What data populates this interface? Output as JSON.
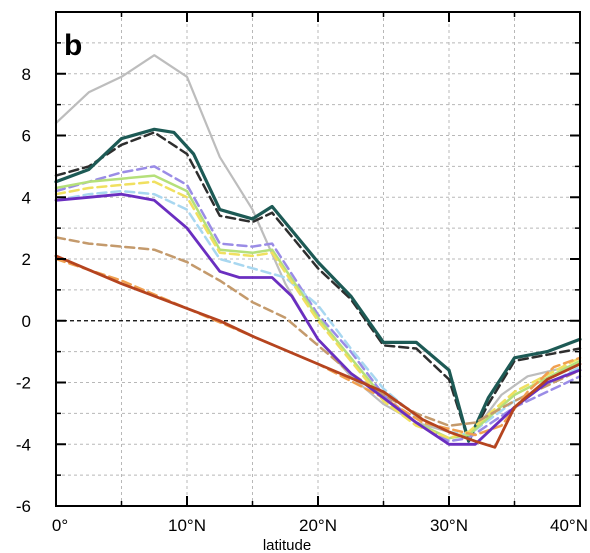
{
  "chart_data": {
    "type": "line",
    "panel_label": "b",
    "xlabel": "latitude",
    "ylabel": "",
    "xlim": [
      0,
      40
    ],
    "ylim": [
      -6,
      10
    ],
    "grid": true,
    "x_ticks": [
      0,
      10,
      20,
      30,
      40
    ],
    "x_tick_labels": [
      "0°",
      "10°N",
      "20°N",
      "30°N",
      "40°N"
    ],
    "y_ticks": [
      -6,
      -4,
      -2,
      0,
      2,
      4,
      6,
      8
    ],
    "y_tick_labels": [
      "-6",
      "-4",
      "-2",
      "0",
      "2",
      "4",
      "6",
      "8"
    ],
    "zero_line": true,
    "series": [
      {
        "color": "#bdbdbd",
        "dash": false,
        "width": 2.2,
        "x": [
          0,
          2.5,
          5,
          7.5,
          10,
          12.5,
          15,
          17.5,
          20,
          22.5,
          25,
          27.5,
          30,
          31.5,
          34,
          36,
          40
        ],
        "y": [
          6.4,
          7.4,
          7.9,
          8.6,
          7.9,
          5.3,
          3.6,
          1.2,
          -0.6,
          -1.8,
          -2.7,
          -3.3,
          -3.6,
          -3.8,
          -2.4,
          -1.8,
          -1.4
        ]
      },
      {
        "color": "#2e2e2e",
        "dash": true,
        "width": 2.5,
        "x": [
          0,
          2.5,
          5,
          7.5,
          10,
          12.5,
          15,
          16.5,
          20,
          22.5,
          25,
          27.5,
          30,
          31.5,
          33,
          35,
          37.5,
          40
        ],
        "y": [
          4.7,
          5.0,
          5.7,
          6.1,
          5.4,
          3.4,
          3.2,
          3.5,
          1.7,
          0.7,
          -0.8,
          -0.9,
          -1.9,
          -3.9,
          -2.7,
          -1.3,
          -1.1,
          -0.9
        ]
      },
      {
        "color": "#1d5a55",
        "dash": false,
        "width": 3.2,
        "x": [
          0,
          2.5,
          5,
          7.5,
          9,
          10.5,
          12.5,
          15,
          16.5,
          20,
          22.5,
          25,
          27.5,
          30,
          31.5,
          33,
          35,
          37.5,
          40
        ],
        "y": [
          4.5,
          4.9,
          5.9,
          6.2,
          6.1,
          5.4,
          3.6,
          3.3,
          3.7,
          1.9,
          0.8,
          -0.7,
          -0.7,
          -1.6,
          -3.9,
          -2.5,
          -1.2,
          -1.0,
          -0.6
        ]
      },
      {
        "color": "#9a8ce6",
        "dash": true,
        "width": 2.5,
        "x": [
          0,
          2.5,
          5,
          7.5,
          10,
          12.5,
          15,
          16.5,
          20,
          22.5,
          25,
          27.5,
          30,
          31.5,
          35,
          40
        ],
        "y": [
          4.2,
          4.5,
          4.8,
          5.0,
          4.4,
          2.5,
          2.4,
          2.5,
          0.2,
          -1.0,
          -2.4,
          -3.3,
          -3.9,
          -3.8,
          -2.8,
          -1.8
        ]
      },
      {
        "color": "#a8d7f0",
        "dash": true,
        "width": 2.5,
        "x": [
          0,
          2.5,
          5,
          7.5,
          10,
          12.5,
          15,
          17.5,
          20,
          22.5,
          25,
          27.5,
          30,
          31.5,
          35,
          40
        ],
        "y": [
          3.9,
          4.1,
          4.2,
          4.1,
          3.6,
          2.0,
          1.7,
          1.4,
          0.5,
          -0.9,
          -2.2,
          -3.1,
          -3.6,
          -3.7,
          -2.6,
          -1.5
        ]
      },
      {
        "color": "#b5e07a",
        "dash": false,
        "width": 2.5,
        "x": [
          0,
          2.5,
          5,
          7.5,
          10,
          12.5,
          15,
          16.5,
          20,
          22.5,
          25,
          27.5,
          30,
          31.5,
          35,
          40
        ],
        "y": [
          4.3,
          4.5,
          4.6,
          4.7,
          4.2,
          2.3,
          2.2,
          2.3,
          0.1,
          -1.2,
          -2.5,
          -3.3,
          -3.8,
          -3.7,
          -2.4,
          -1.3
        ]
      },
      {
        "color": "#f0e060",
        "dash": true,
        "width": 2.5,
        "x": [
          0,
          2.5,
          5,
          7.5,
          10,
          12.5,
          15,
          16.5,
          20,
          22.5,
          25,
          27.5,
          30,
          31.5,
          35,
          40
        ],
        "y": [
          4.1,
          4.3,
          4.4,
          4.5,
          4.0,
          2.2,
          2.1,
          2.2,
          0.0,
          -1.3,
          -2.6,
          -3.4,
          -3.8,
          -3.6,
          -2.3,
          -1.2
        ]
      },
      {
        "color": "#c49a6c",
        "dash": true,
        "width": 2.5,
        "x": [
          0,
          2.5,
          5,
          7.5,
          10,
          12.5,
          15,
          17.5,
          20,
          22.5,
          25,
          27.5,
          30,
          32,
          35,
          40
        ],
        "y": [
          2.7,
          2.5,
          2.4,
          2.3,
          1.9,
          1.3,
          0.6,
          0.1,
          -0.8,
          -1.7,
          -2.4,
          -3.0,
          -3.4,
          -3.3,
          -2.6,
          -1.6
        ]
      },
      {
        "color": "#f0a050",
        "dash": true,
        "width": 2.5,
        "x": [
          0,
          5,
          10,
          15,
          20,
          25,
          28,
          30,
          32,
          34,
          36,
          38,
          40
        ],
        "y": [
          2.0,
          1.3,
          0.4,
          -0.5,
          -1.4,
          -2.5,
          -3.3,
          -3.5,
          -3.7,
          -3.4,
          -2.3,
          -1.5,
          -1.2
        ]
      },
      {
        "color": "#6a2ec0",
        "dash": false,
        "width": 2.8,
        "x": [
          0,
          2.5,
          5,
          7.5,
          10,
          12.5,
          14,
          16.5,
          18,
          20,
          22.5,
          25,
          27.5,
          30,
          32,
          35,
          37.5,
          40
        ],
        "y": [
          3.9,
          4.0,
          4.1,
          3.9,
          3.0,
          1.6,
          1.4,
          1.4,
          0.8,
          -0.6,
          -1.7,
          -2.5,
          -3.3,
          -4.0,
          -4.0,
          -2.8,
          -2.0,
          -1.6
        ]
      },
      {
        "color": "#b5441f",
        "dash": false,
        "width": 2.8,
        "x": [
          0,
          5,
          10,
          12.5,
          15,
          20,
          25,
          28,
          30,
          32,
          33.5,
          35,
          37.5,
          40
        ],
        "y": [
          2.1,
          1.2,
          0.4,
          0.0,
          -0.5,
          -1.4,
          -2.3,
          -3.2,
          -3.6,
          -3.9,
          -4.1,
          -2.8,
          -1.9,
          -1.4
        ]
      }
    ]
  }
}
